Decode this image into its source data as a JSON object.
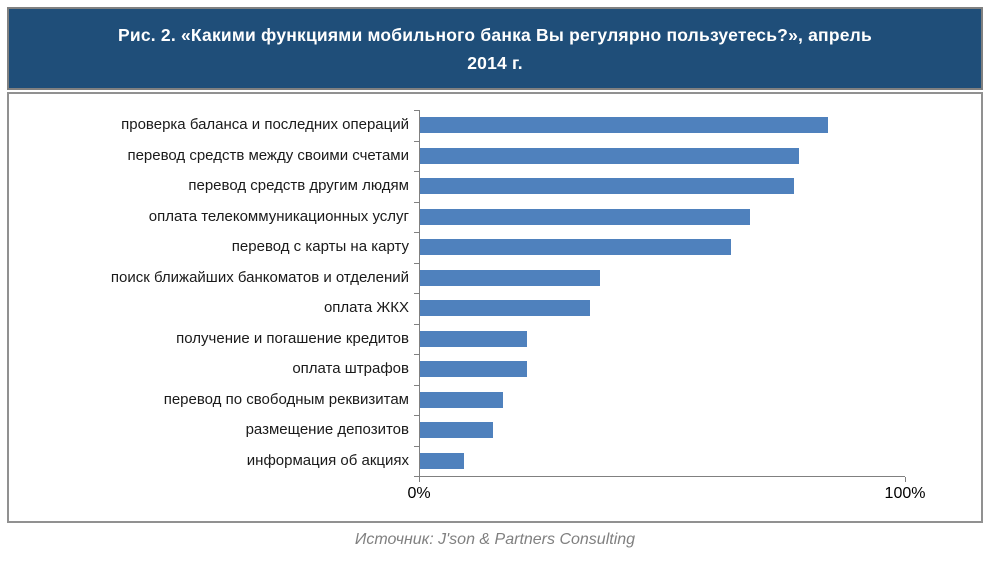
{
  "header": {
    "title_line1": "Рис. 2. «Какими функциями мобильного банка Вы регулярно пользуетесь?», апрель",
    "title_line2": "2014 г."
  },
  "chart_data": {
    "type": "bar",
    "orientation": "horizontal",
    "title": "Рис. 2. «Какими функциями мобильного банка Вы регулярно пользуетесь?», апрель 2014 г.",
    "categories": [
      "проверка баланса и последних операций",
      "перевод средств между своими счетами",
      "перевод средств другим людям",
      "оплата телекоммуникационных услуг",
      "перевод с карты на карту",
      "поиск ближайших банкоматов и отделений",
      "оплата ЖКХ",
      "получение и погашение кредитов",
      "оплата штрафов",
      "перевод по свободным реквизитам",
      "размещение депозитов",
      "информация об акциях"
    ],
    "values": [
      84,
      78,
      77,
      68,
      64,
      37,
      35,
      22,
      22,
      17,
      15,
      9
    ],
    "unit": "%",
    "xlim": [
      0,
      100
    ],
    "x_ticks": [
      {
        "label": "0%",
        "value": 0
      },
      {
        "label": "100%",
        "value": 100
      }
    ],
    "grid": false,
    "legend": false,
    "bar_color": "#4F81BD"
  },
  "source": {
    "text": "Источник: J'son & Partners Consulting"
  },
  "colors": {
    "header_bg": "#1F4E79",
    "header_text": "#FFFFFF",
    "bar": "#4F81BD",
    "panel_border": "#808080",
    "axis": "#808080",
    "label_text": "#1A1A1A",
    "source_text": "#808080"
  }
}
